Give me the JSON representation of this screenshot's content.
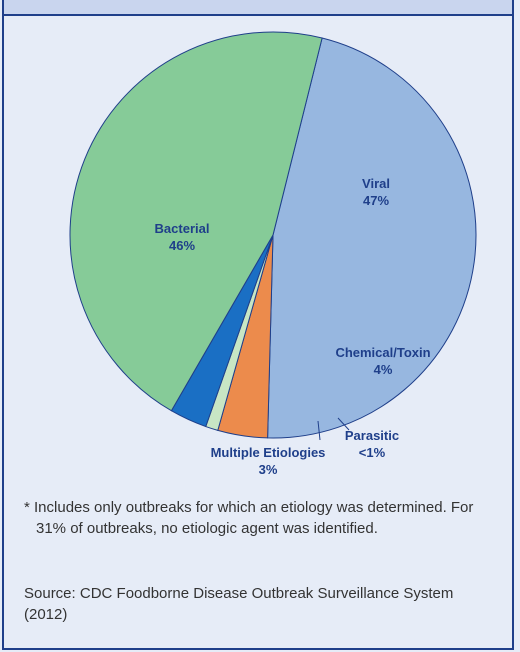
{
  "header": {
    "title": ""
  },
  "chart_data": {
    "type": "pie",
    "categories": [
      "Viral",
      "Chemical/Toxin",
      "Parasitic",
      "Multiple Etiologies",
      "Bacterial"
    ],
    "slices": [
      {
        "label": "Viral",
        "value_label": "47%",
        "value": 47,
        "color": "#97b7e0"
      },
      {
        "label": "Chemical/Toxin",
        "value_label": "4%",
        "value": 4,
        "color": "#ec8b4c"
      },
      {
        "label": "Parasitic",
        "value_label": "<1%",
        "value": 1,
        "color": "#c8e6c4"
      },
      {
        "label": "Multiple Etiologies",
        "value_label": "3%",
        "value": 3,
        "color": "#1a6fc4"
      },
      {
        "label": "Bacterial",
        "value_label": "46%",
        "value": 46,
        "color": "#86cb98"
      }
    ],
    "title": "",
    "legend": "none"
  },
  "footnote": "* Includes only outbreaks for which an etiology was determined. For 31% of outbreaks, no etiologic agent was identified.",
  "source": "Source: CDC Foodborne Disease Outbreak Surveillance System (2012)"
}
